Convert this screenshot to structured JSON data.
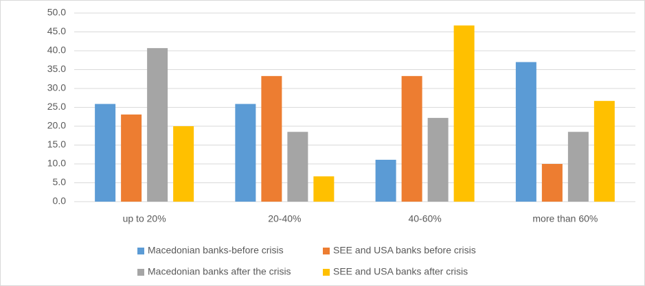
{
  "chart_data": {
    "type": "bar",
    "categories": [
      "up to 20%",
      "20-40%",
      "40-60%",
      "more than 60%"
    ],
    "series": [
      {
        "name": "Macedonian banks-before crisis",
        "color": "#5b9bd5",
        "values": [
          25.9,
          25.9,
          11.1,
          37.0
        ]
      },
      {
        "name": "SEE and USA banks before crisis",
        "color": "#ed7d31",
        "values": [
          23.1,
          33.3,
          33.3,
          10.0
        ]
      },
      {
        "name": "Macedonian banks after the crisis",
        "color": "#a5a5a5",
        "values": [
          40.7,
          18.5,
          22.2,
          18.5
        ]
      },
      {
        "name": "SEE and USA banks after crisis",
        "color": "#ffc000",
        "values": [
          20.0,
          6.7,
          46.7,
          26.7
        ]
      }
    ],
    "ylim": [
      0,
      50
    ],
    "yticks": [
      {
        "value": 0,
        "label": "0.0"
      },
      {
        "value": 5,
        "label": "5.0"
      },
      {
        "value": 10,
        "label": "10.0"
      },
      {
        "value": 15,
        "label": "15.0"
      },
      {
        "value": 20,
        "label": "20.0"
      },
      {
        "value": 25,
        "label": "25.0"
      },
      {
        "value": 30,
        "label": "30.0"
      },
      {
        "value": 35,
        "label": "35.0"
      },
      {
        "value": 40,
        "label": "40.0"
      },
      {
        "value": 45,
        "label": "45.0"
      },
      {
        "value": 50,
        "label": "50.0"
      }
    ],
    "grid": true,
    "legend": "bottom"
  }
}
